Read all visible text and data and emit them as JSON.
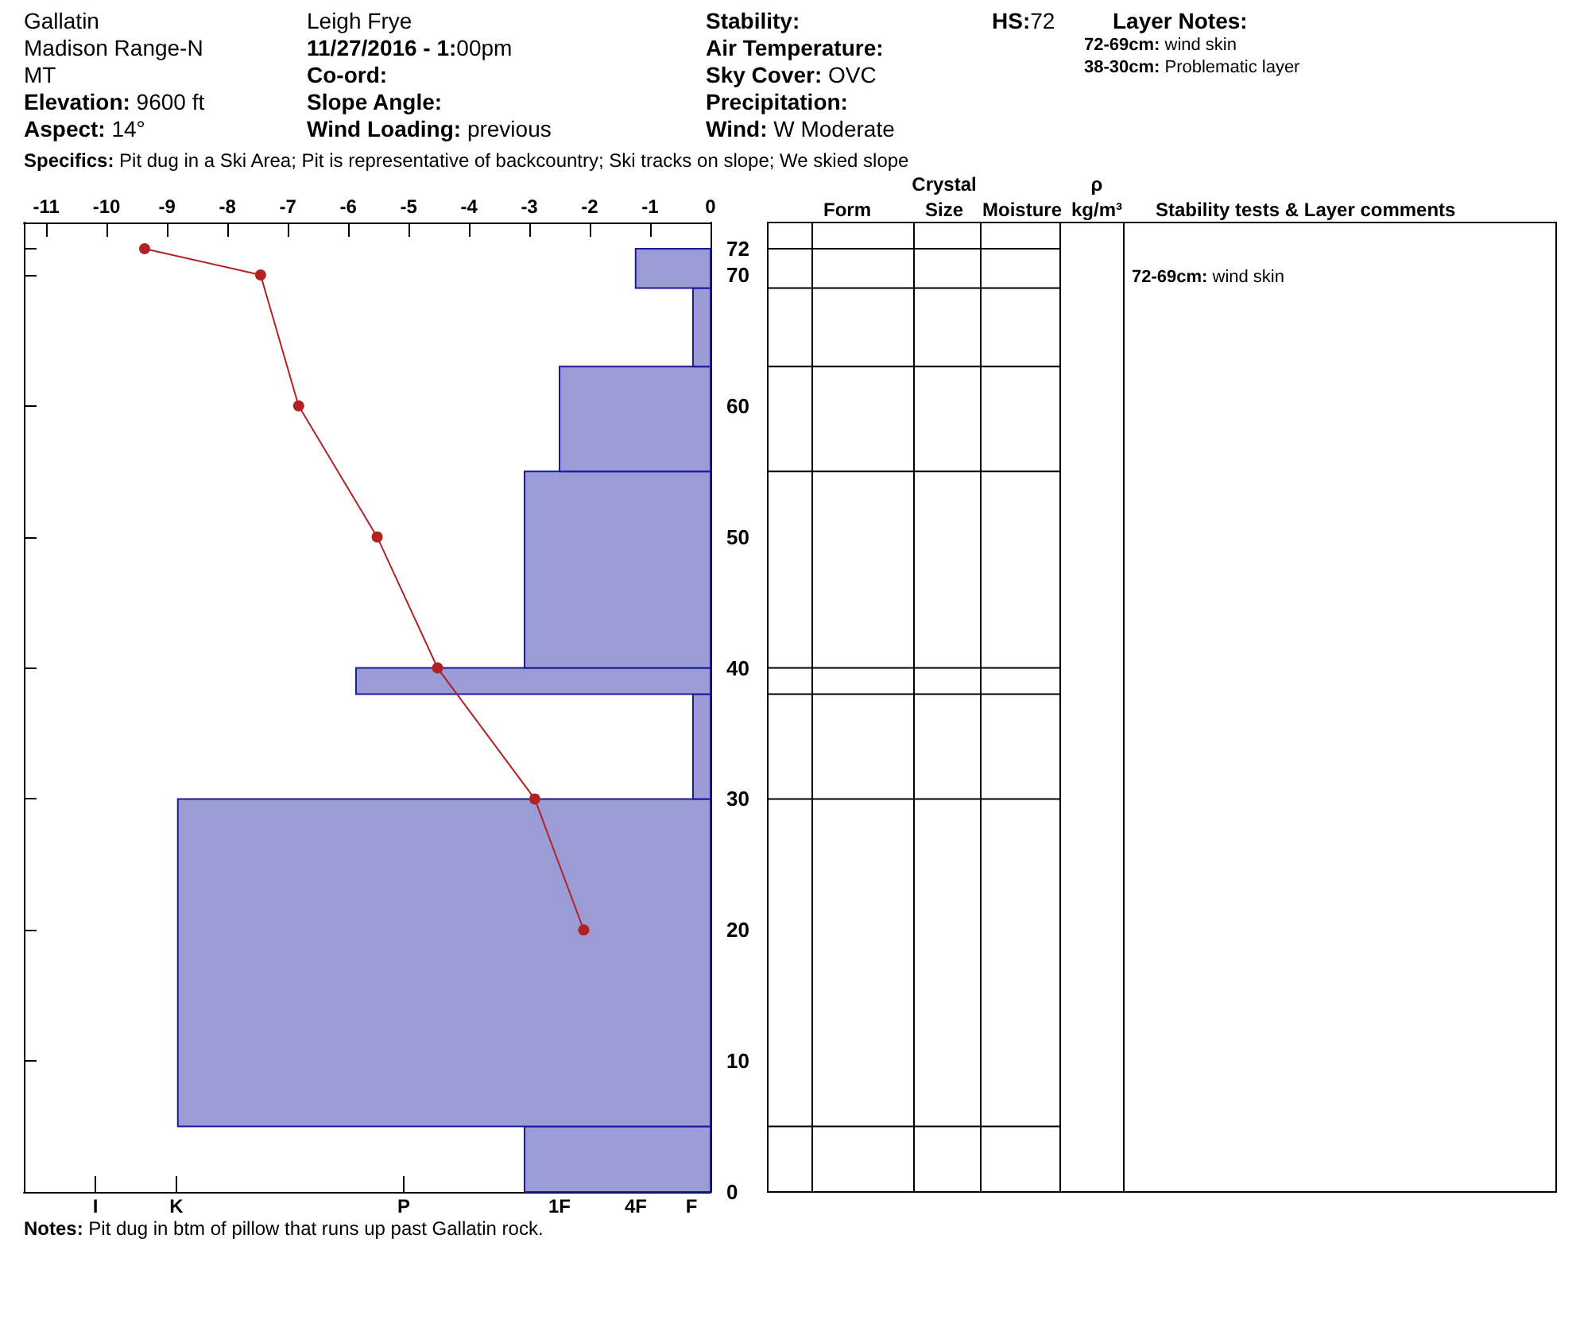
{
  "chart_data": {
    "type": "histogram",
    "orientation": "horizontal",
    "series": [
      {
        "color": "#9b9bd6",
        "bins": [
          0,
          5,
          30,
          38,
          40,
          55,
          63,
          69,
          72
        ],
        "values": [
          -3.08,
          -8.82,
          -0.29,
          -5.87,
          -3.08,
          -2.5,
          -0.29,
          -1.24
        ]
      },
      {
        "type": "line",
        "color": "#b22222",
        "x": [
          72,
          70,
          60,
          50,
          40,
          30,
          20
        ],
        "values": [
          -9.37,
          -7.45,
          -6.82,
          -5.52,
          -4.52,
          -2.91,
          -2.1
        ]
      }
    ],
    "xlim": [
      -11.37,
      0
    ],
    "xticks": [
      -11,
      -10,
      -9,
      -8,
      -7,
      -6,
      -5,
      -4,
      -3,
      -2,
      -1,
      0
    ],
    "ylim": [
      0,
      74
    ],
    "yticks": [
      0,
      10,
      20,
      30,
      40,
      50,
      60,
      70,
      72
    ],
    "marker": "circle",
    "line_style": "solid",
    "grid": false,
    "annotations": [
      "Gallatin",
      "Madison Range-N",
      "MT",
      "Elevation: 9600 ft",
      "Aspect: 14°",
      "Leigh Frye",
      "11/27/2016 - 1:00pm",
      "Co-ord:",
      "Slope Angle:",
      "Wind Loading: previous",
      "Stability:",
      "Air Temperature:",
      "Sky Cover: OVC",
      "Precipitation:",
      "Wind: W Moderate",
      "HS:72",
      "Layer Notes:",
      "72-69cm: wind skin",
      "38-30cm: Problematic layer",
      "Specifics: Pit dug in a Ski Area; Pit is representative of backcountry; Ski tracks on slope; We skied slope",
      "Notes: Pit dug in btm of pillow that runs up past Gallatin rock.",
      "Form",
      "Crystal Size",
      "Moisture",
      "ρ kg/m³",
      "Stability tests & Layer comments",
      "72-69cm: wind skin",
      "I",
      "K",
      "P",
      "1F",
      "4F",
      "F"
    ]
  }
}
